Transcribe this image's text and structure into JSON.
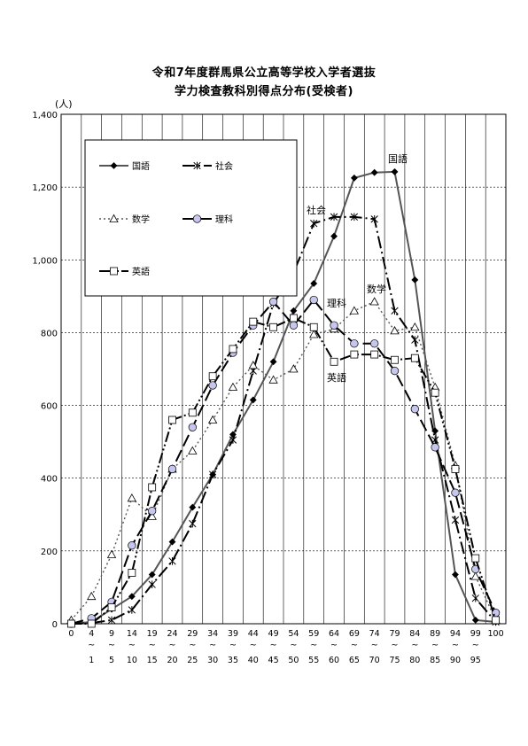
{
  "chart_data": {
    "type": "line",
    "title": "令和7年度群馬県公立高等学校入学者選抜",
    "subtitle": "学力検査教科別得点分布(受検者)",
    "ylabel": "(人)",
    "xlabel": "",
    "ylim": [
      0,
      1400
    ],
    "yticks": [
      0,
      200,
      400,
      600,
      800,
      1000,
      1200,
      1400
    ],
    "ytick_labels": [
      "0",
      "200",
      "400",
      "600",
      "800",
      "1,000",
      "1,200",
      "1,400"
    ],
    "grid": true,
    "legend_placement": "top-left",
    "categories_top": [
      "0",
      "4",
      "9",
      "14",
      "19",
      "24",
      "29",
      "34",
      "39",
      "44",
      "49",
      "54",
      "59",
      "64",
      "69",
      "74",
      "79",
      "84",
      "89",
      "94",
      "99",
      "100"
    ],
    "categories_tilde": "~",
    "categories_bottom": [
      "",
      "1",
      "5",
      "10",
      "15",
      "20",
      "25",
      "30",
      "35",
      "40",
      "45",
      "50",
      "55",
      "60",
      "65",
      "70",
      "75",
      "80",
      "85",
      "90",
      "95",
      ""
    ],
    "series": [
      {
        "name": "国語",
        "marker": "diamond",
        "color": "#555555",
        "dash": "solid",
        "values": [
          0,
          5,
          40,
          75,
          135,
          225,
          320,
          410,
          520,
          615,
          720,
          860,
          935,
          1065,
          1225,
          1240,
          1242,
          945,
          530,
          135,
          10,
          5
        ]
      },
      {
        "name": "社会",
        "marker": "asterisk",
        "color": "#000000",
        "dash": "dashdot",
        "values": [
          0,
          2,
          10,
          38,
          108,
          172,
          275,
          410,
          505,
          695,
          880,
          965,
          1100,
          1118,
          1118,
          1112,
          860,
          780,
          505,
          285,
          70,
          5
        ]
      },
      {
        "name": "数学",
        "marker": "triangle",
        "color": "#555555",
        "dash": "dot",
        "values": [
          10,
          75,
          190,
          345,
          295,
          425,
          475,
          560,
          650,
          710,
          670,
          700,
          795,
          810,
          860,
          885,
          805,
          815,
          650,
          435,
          130,
          10
        ]
      },
      {
        "name": "理科",
        "marker": "circle",
        "color": "#000000",
        "dash": "longdash",
        "values": [
          0,
          15,
          60,
          215,
          310,
          425,
          540,
          655,
          745,
          820,
          885,
          820,
          890,
          820,
          770,
          770,
          695,
          590,
          485,
          360,
          150,
          30
        ]
      },
      {
        "name": "英語",
        "marker": "square",
        "color": "#000000",
        "dash": "dashdotdot",
        "values": [
          0,
          0,
          45,
          140,
          375,
          560,
          580,
          680,
          755,
          830,
          815,
          840,
          815,
          720,
          740,
          740,
          725,
          730,
          635,
          425,
          180,
          10
        ]
      }
    ],
    "annotations": [
      "国語",
      "社会",
      "数学",
      "理科",
      "英語"
    ]
  }
}
